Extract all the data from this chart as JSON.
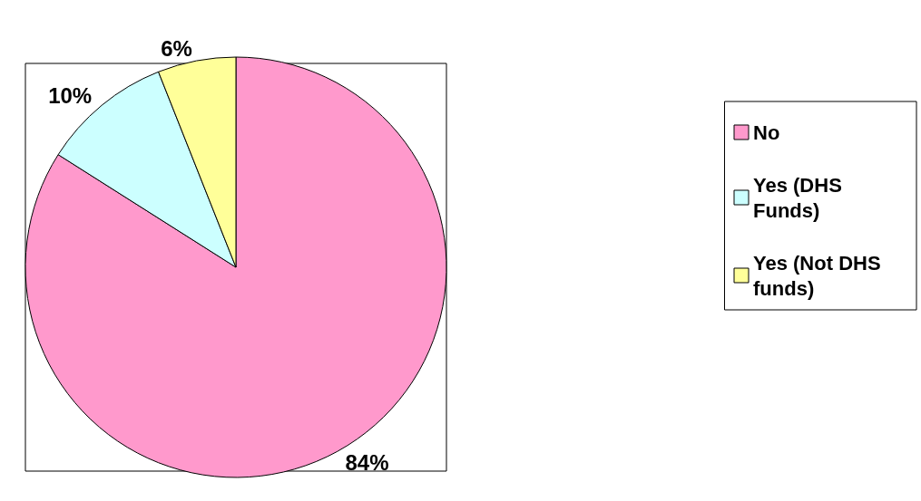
{
  "chart_data": {
    "type": "pie",
    "categories": [
      "No",
      "Yes (DHS Funds)",
      "Yes (Not DHS funds)"
    ],
    "values": [
      84,
      10,
      6
    ],
    "colors": [
      "#ff99cc",
      "#ccffff",
      "#ffff99"
    ],
    "value_labels": [
      "84%",
      "10%",
      "6%"
    ],
    "legend": "right"
  }
}
